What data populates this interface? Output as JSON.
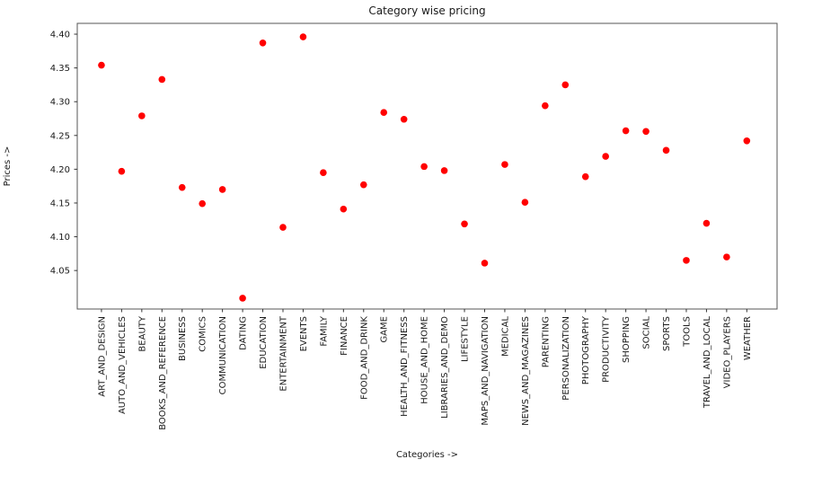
{
  "figure": {
    "background_color": "#ffffff",
    "text_color": "#1a1a1a",
    "spine_color": "#555555"
  },
  "chart_data": {
    "type": "scatter",
    "title": "Category wise pricing",
    "xlabel": "Categories ->",
    "ylabel": "Prices ->",
    "marker_color": "#ff0000",
    "grid": false,
    "legend": "none",
    "categories": [
      "ART_AND_DESIGN",
      "AUTO_AND_VEHICLES",
      "BEAUTY",
      "BOOKS_AND_REFERENCE",
      "BUSINESS",
      "COMICS",
      "COMMUNICATION",
      "DATING",
      "EDUCATION",
      "ENTERTAINMENT",
      "EVENTS",
      "FAMILY",
      "FINANCE",
      "FOOD_AND_DRINK",
      "GAME",
      "HEALTH_AND_FITNESS",
      "HOUSE_AND_HOME",
      "LIBRARIES_AND_DEMO",
      "LIFESTYLE",
      "MAPS_AND_NAVIGATION",
      "MEDICAL",
      "NEWS_AND_MAGAZINES",
      "PARENTING",
      "PERSONALIZATION",
      "PHOTOGRAPHY",
      "PRODUCTIVITY",
      "SHOPPING",
      "SOCIAL",
      "SPORTS",
      "TOOLS",
      "TRAVEL_AND_LOCAL",
      "VIDEO_PLAYERS",
      "WEATHER"
    ],
    "values": [
      4.354,
      4.197,
      4.279,
      4.333,
      4.173,
      4.149,
      4.17,
      4.009,
      4.387,
      4.114,
      4.396,
      4.195,
      4.141,
      4.177,
      4.284,
      4.274,
      4.204,
      4.198,
      4.119,
      4.061,
      4.207,
      4.151,
      4.294,
      4.325,
      4.189,
      4.219,
      4.257,
      4.256,
      4.228,
      4.065,
      4.12,
      4.07,
      4.242
    ],
    "yticks": [
      4.05,
      4.1,
      4.15,
      4.2,
      4.25,
      4.3,
      4.35,
      4.4
    ],
    "ytick_labels": [
      "4.05",
      "4.10",
      "4.15",
      "4.20",
      "4.25",
      "4.30",
      "4.35",
      "4.40"
    ],
    "ylim": [
      3.993,
      4.416
    ],
    "xlim": [
      -1.2,
      33.5
    ]
  }
}
